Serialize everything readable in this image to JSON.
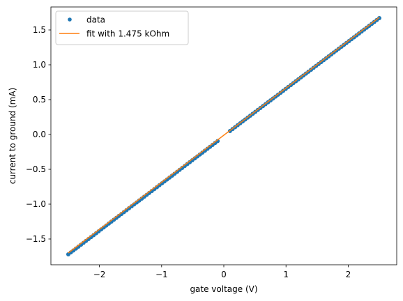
{
  "chart_data": {
    "type": "scatter",
    "title": "",
    "xlabel": "gate voltage (V)",
    "ylabel": "current to ground (mA)",
    "xlim": [
      -2.78,
      2.78
    ],
    "ylim": [
      -1.87,
      1.83
    ],
    "xticks": [
      -2,
      -1,
      0,
      1,
      2
    ],
    "xtick_labels": [
      "−2",
      "−1",
      "0",
      "1",
      "2"
    ],
    "yticks": [
      -1.5,
      -1.0,
      -0.5,
      0.0,
      0.5,
      1.0,
      1.5
    ],
    "ytick_labels": [
      "−1.5",
      "−1.0",
      "−0.5",
      "0.0",
      "0.5",
      "1.0",
      "1.5"
    ],
    "grid": false,
    "legend_position": "upper-left",
    "series": [
      {
        "name": "data",
        "style": "markers",
        "color": "#1f77b4",
        "segments": [
          {
            "x_start": -2.5,
            "x_end": -0.1,
            "y_start": -1.72,
            "y_end": -0.095
          },
          {
            "x_start": 0.1,
            "x_end": 2.5,
            "y_start": 0.05,
            "y_end": 1.67
          }
        ],
        "points_per_segment": 60
      },
      {
        "name": "fit with 1.475 kOhm",
        "style": "line",
        "color": "#ff7f0e",
        "x": [
          -2.5,
          2.5
        ],
        "y": [
          -1.7,
          1.68
        ]
      }
    ]
  }
}
